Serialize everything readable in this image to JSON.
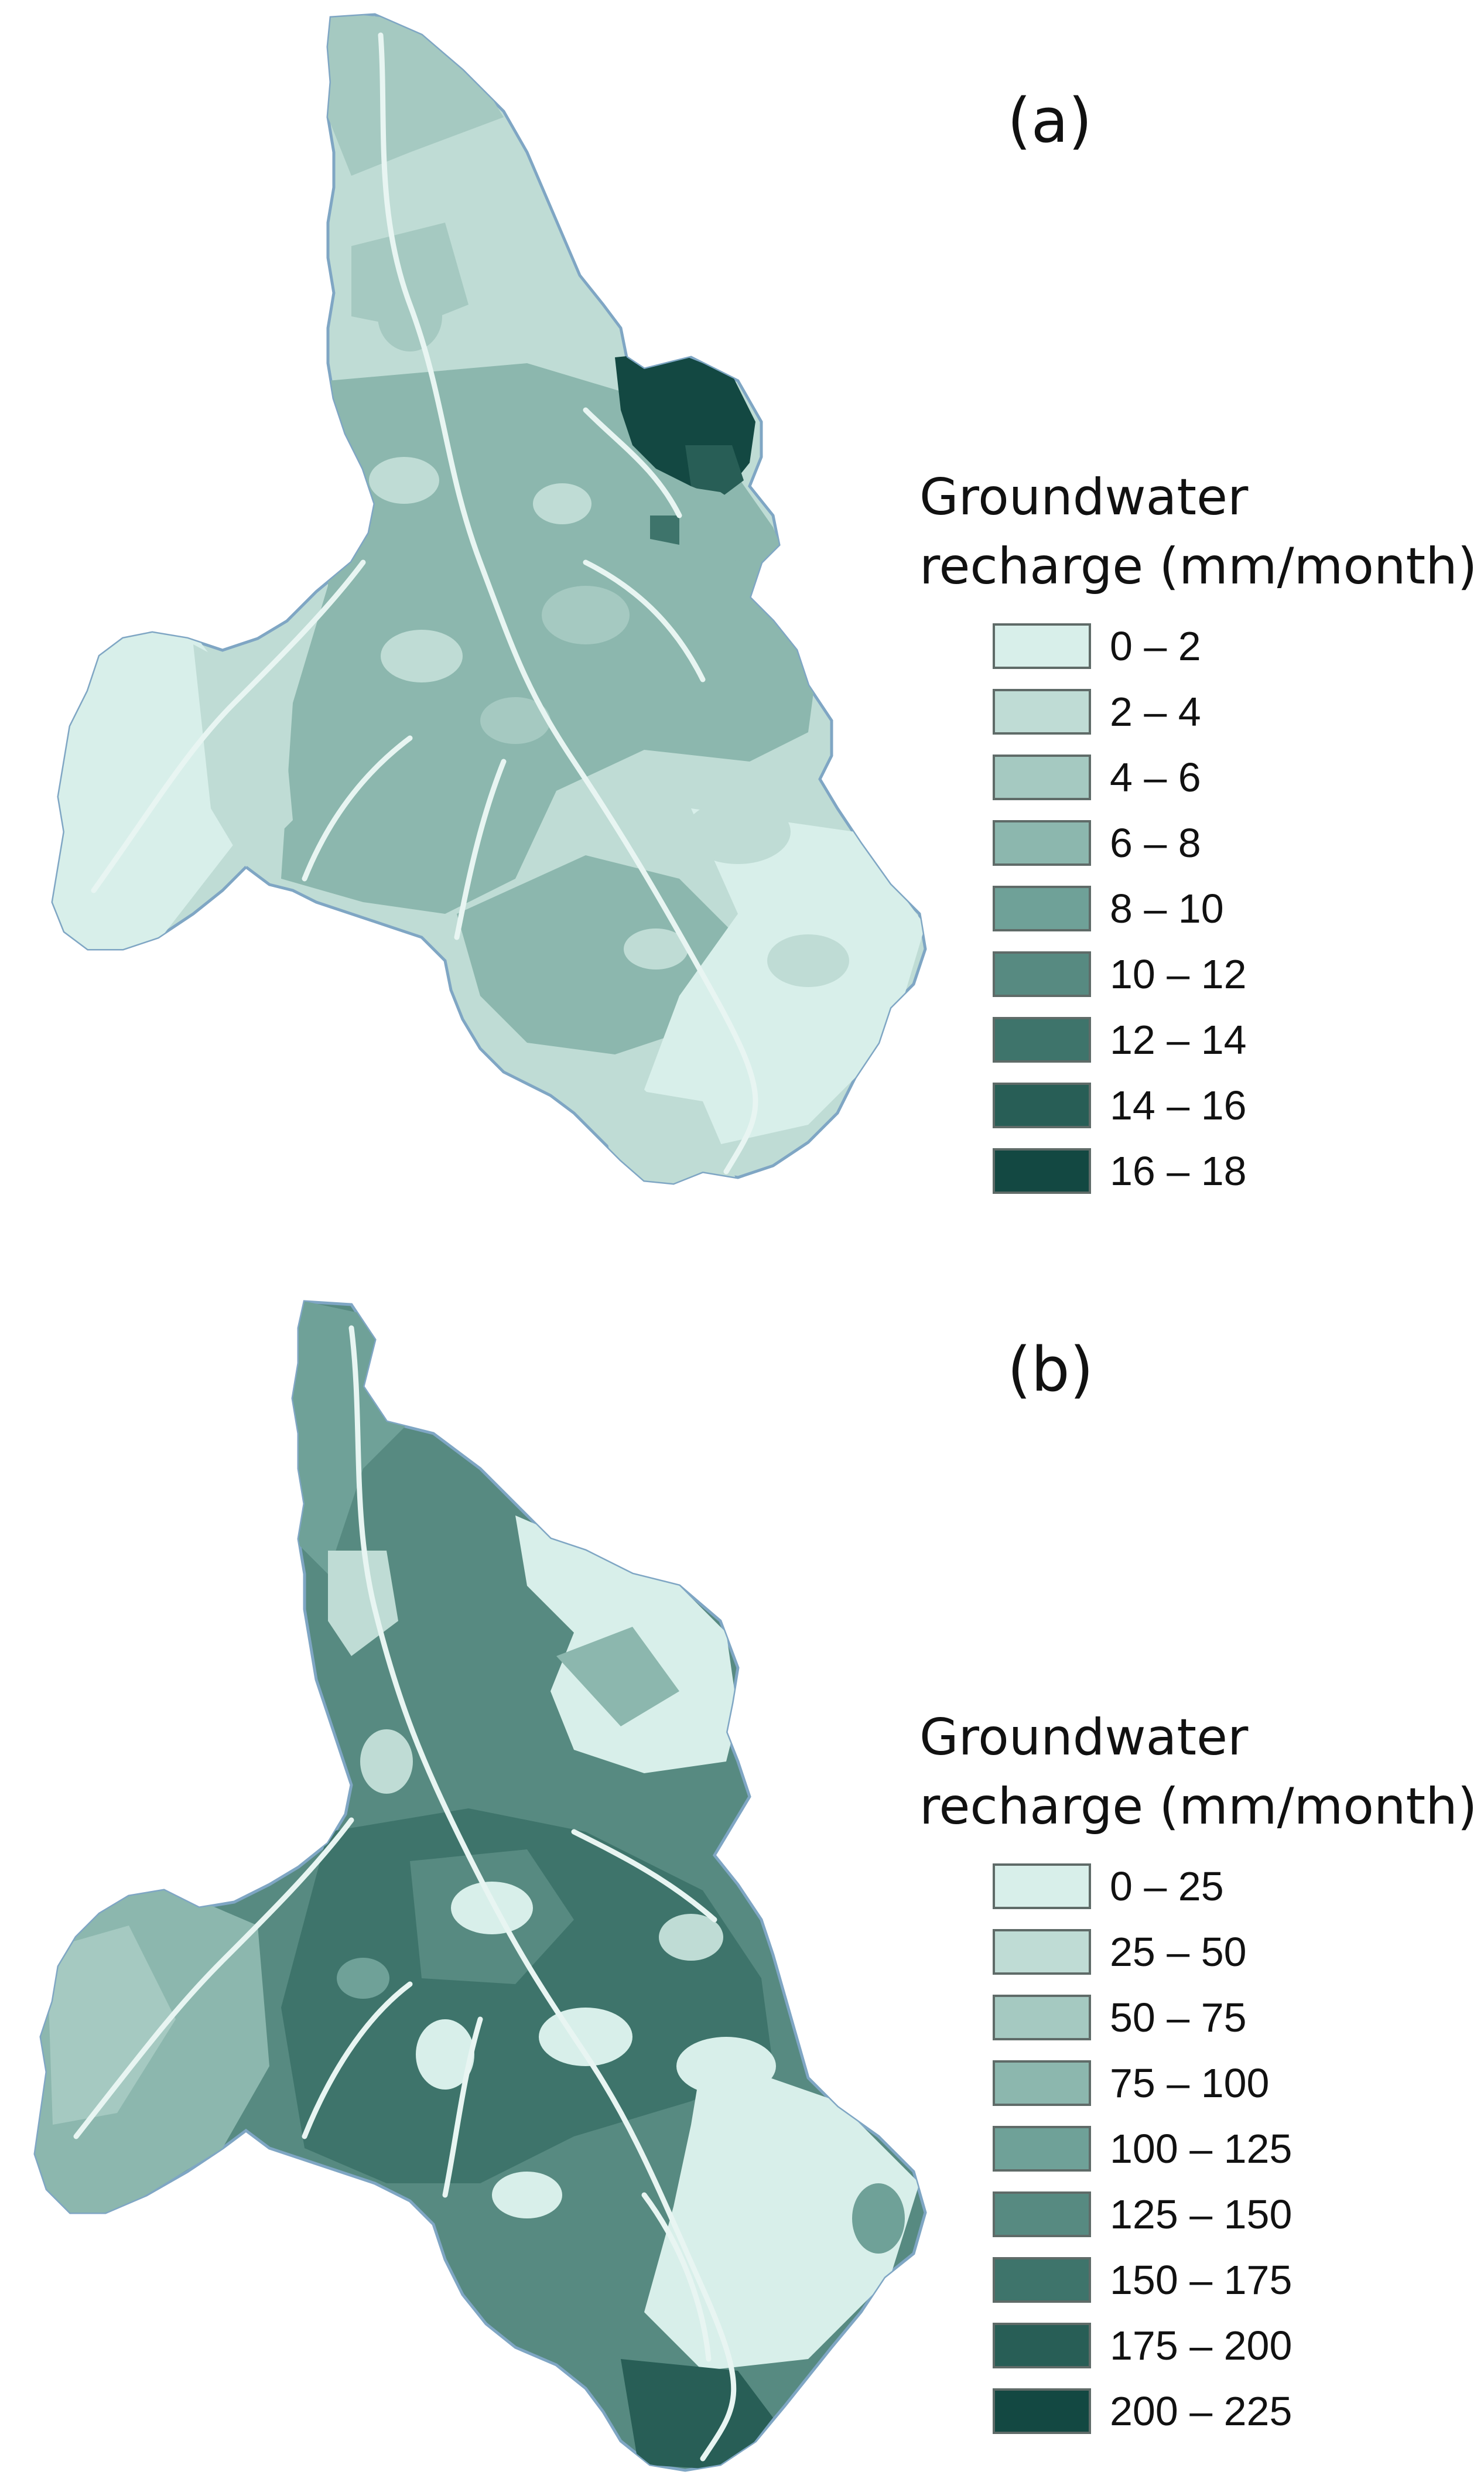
{
  "panels": [
    {
      "label": "(a)",
      "legend": {
        "title_line1": "Groundwater",
        "title_line2": "recharge (mm/month)",
        "items": [
          {
            "range": "0 – 2",
            "color": "#d8efea"
          },
          {
            "range": "2 – 4",
            "color": "#bfdcd5"
          },
          {
            "range": "4 – 6",
            "color": "#a5c9c1"
          },
          {
            "range": "6 – 8",
            "color": "#8cb7ae"
          },
          {
            "range": "8 – 10",
            "color": "#6fa198"
          },
          {
            "range": "10 – 12",
            "color": "#578a81"
          },
          {
            "range": "12 – 14",
            "color": "#3e746b"
          },
          {
            "range": "14 – 16",
            "color": "#285e56"
          },
          {
            "range": "16 – 18",
            "color": "#134842"
          }
        ]
      }
    },
    {
      "label": "(b)",
      "legend": {
        "title_line1": "Groundwater",
        "title_line2": "recharge (mm/month)",
        "items": [
          {
            "range": "0 – 25",
            "color": "#d8efea"
          },
          {
            "range": "25 – 50",
            "color": "#bfdcd5"
          },
          {
            "range": "50 – 75",
            "color": "#a5c9c1"
          },
          {
            "range": "75 – 100",
            "color": "#8cb7ae"
          },
          {
            "range": "100 – 125",
            "color": "#6fa198"
          },
          {
            "range": "125 – 150",
            "color": "#578a81"
          },
          {
            "range": "150 – 175",
            "color": "#3e746b"
          },
          {
            "range": "175 – 200",
            "color": "#285e56"
          },
          {
            "range": "200 – 225",
            "color": "#134842"
          }
        ]
      }
    }
  ]
}
